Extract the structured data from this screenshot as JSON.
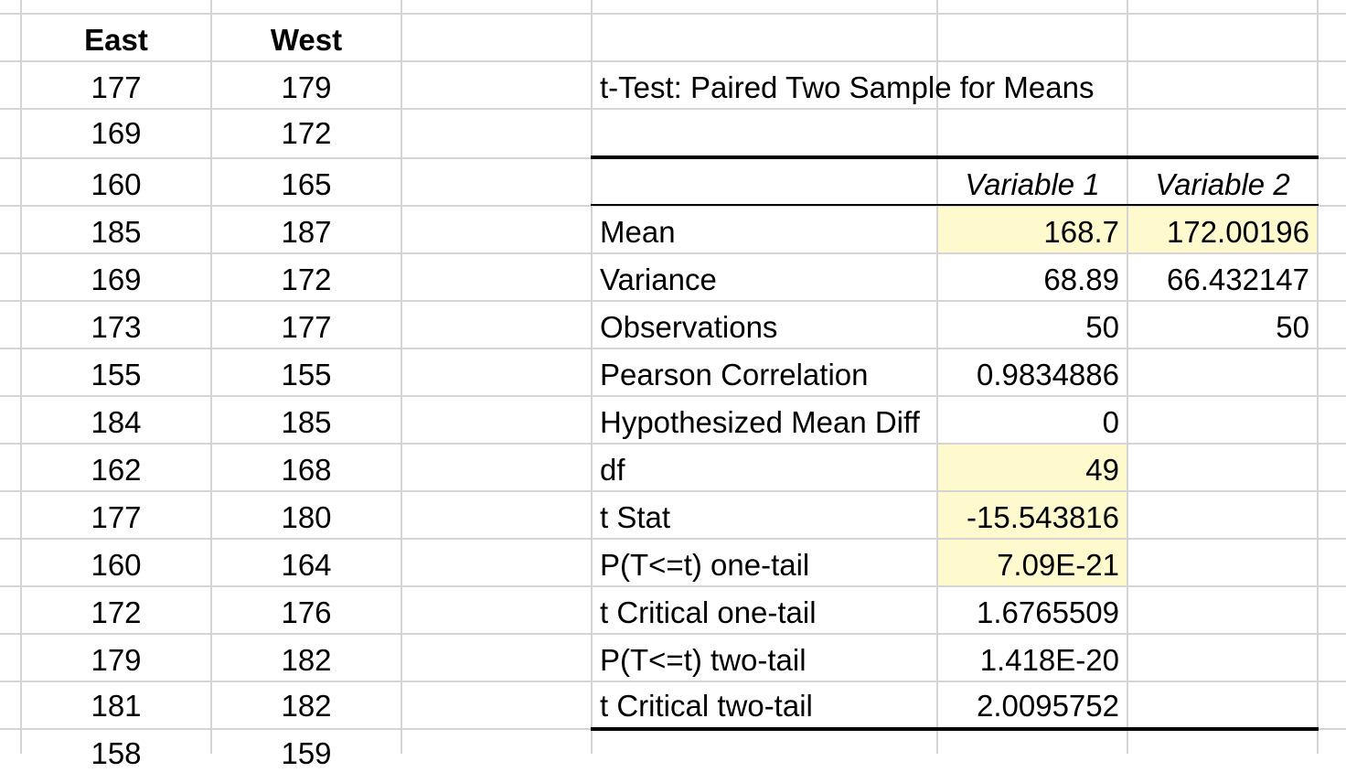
{
  "left_table": {
    "headers": [
      "East",
      "West"
    ],
    "rows": [
      [
        "177",
        "179"
      ],
      [
        "169",
        "172"
      ],
      [
        "160",
        "165"
      ],
      [
        "185",
        "187"
      ],
      [
        "169",
        "172"
      ],
      [
        "173",
        "177"
      ],
      [
        "155",
        "155"
      ],
      [
        "184",
        "185"
      ],
      [
        "162",
        "168"
      ],
      [
        "177",
        "180"
      ],
      [
        "160",
        "164"
      ],
      [
        "172",
        "176"
      ],
      [
        "179",
        "182"
      ],
      [
        "181",
        "182"
      ],
      [
        "158",
        "159"
      ]
    ]
  },
  "ttest": {
    "title": "t-Test: Paired Two Sample for Means",
    "col_headers": [
      "Variable 1",
      "Variable 2"
    ],
    "rows": [
      {
        "label": "Mean",
        "v1": "168.7",
        "v2": "172.00196"
      },
      {
        "label": "Variance",
        "v1": "68.89",
        "v2": "66.432147"
      },
      {
        "label": "Observations",
        "v1": "50",
        "v2": "50"
      },
      {
        "label": "Pearson Correlation",
        "v1": "0.9834886",
        "v2": ""
      },
      {
        "label": "Hypothesized Mean Diff",
        "v1": "0",
        "v2": ""
      },
      {
        "label": "df",
        "v1": "49",
        "v2": ""
      },
      {
        "label": "t Stat",
        "v1": "-15.543816",
        "v2": ""
      },
      {
        "label": "P(T<=t) one-tail",
        "v1": "7.09E-21",
        "v2": ""
      },
      {
        "label": "t Critical one-tail",
        "v1": "1.6765509",
        "v2": ""
      },
      {
        "label": "P(T<=t) two-tail",
        "v1": "1.418E-20",
        "v2": ""
      },
      {
        "label": "t Critical two-tail",
        "v1": "2.0095752",
        "v2": ""
      }
    ]
  },
  "highlight_color": "#fffacd"
}
